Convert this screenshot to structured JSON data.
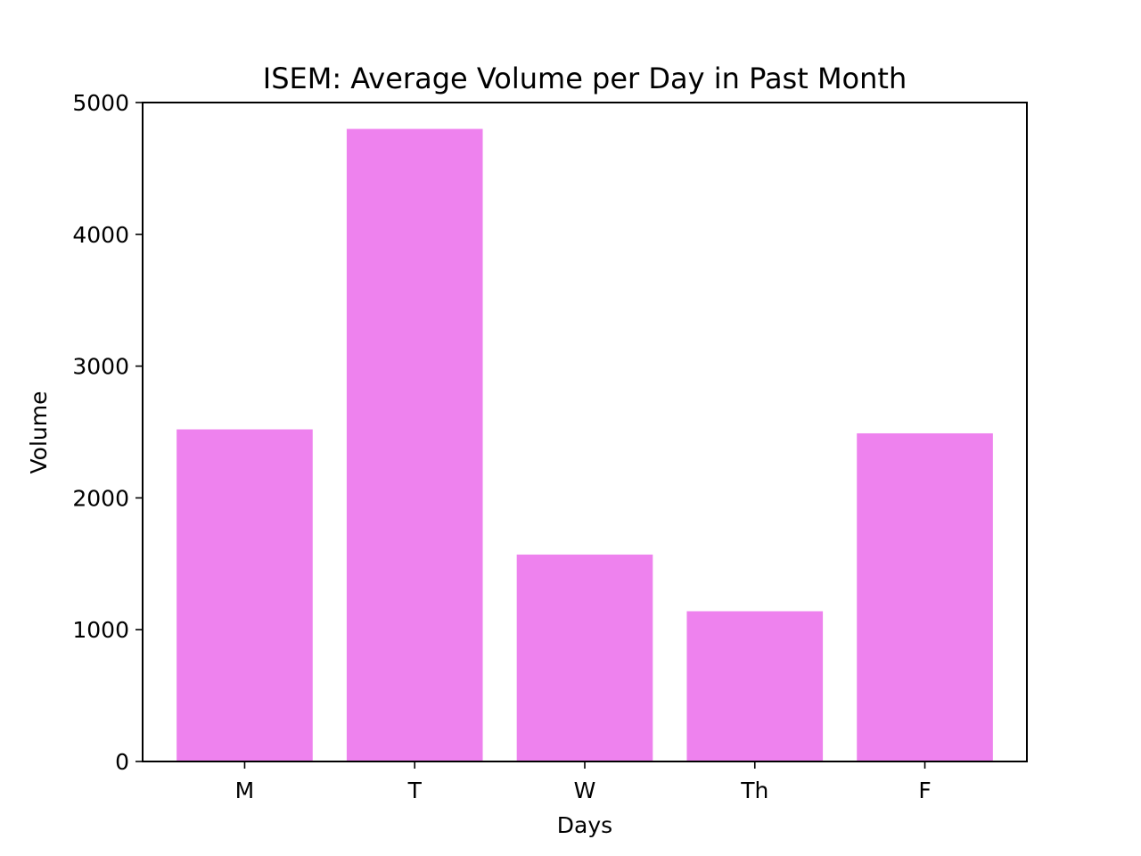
{
  "chart_data": {
    "type": "bar",
    "title": "ISEM: Average Volume per Day in Past Month",
    "xlabel": "Days",
    "ylabel": "Volume",
    "categories": [
      "M",
      "T",
      "W",
      "Th",
      "F"
    ],
    "values": [
      2520,
      4800,
      1570,
      1140,
      2490
    ],
    "ylim": [
      0,
      5000
    ],
    "yticks": [
      0,
      1000,
      2000,
      3000,
      4000,
      5000
    ],
    "bar_color": "#ee82ee",
    "grid": false,
    "legend": "none"
  }
}
